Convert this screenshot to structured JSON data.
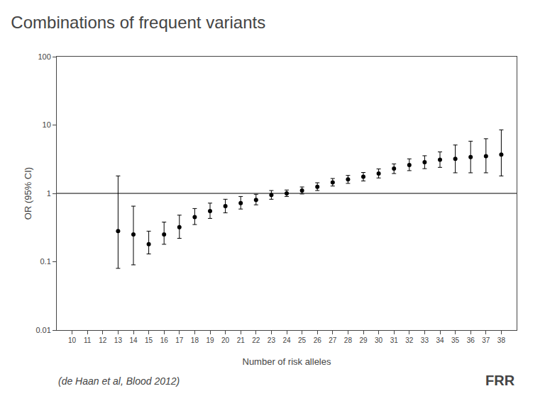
{
  "chart_data": {
    "type": "scatter",
    "title": "Combinations of frequent variants",
    "subtitle": "(de Haan et al, Blood 2012)",
    "annotations": [
      "FRR"
    ],
    "xlabel": "Number of risk alleles",
    "ylabel": "OR (95% CI)",
    "x": [
      10,
      11,
      12,
      13,
      14,
      15,
      16,
      17,
      18,
      19,
      20,
      21,
      22,
      23,
      24,
      25,
      26,
      27,
      28,
      29,
      30,
      31,
      32,
      33,
      34,
      35,
      36,
      37,
      38
    ],
    "values": [
      null,
      null,
      null,
      0.28,
      0.25,
      0.18,
      0.25,
      0.32,
      0.45,
      0.55,
      0.65,
      0.72,
      0.8,
      0.95,
      1.0,
      1.1,
      1.25,
      1.45,
      1.6,
      1.75,
      1.95,
      2.3,
      2.6,
      2.85,
      3.1,
      3.2,
      3.4,
      3.5,
      3.7
    ],
    "ci_low": [
      null,
      null,
      null,
      0.08,
      0.09,
      0.13,
      0.18,
      0.22,
      0.35,
      0.43,
      0.52,
      0.59,
      0.68,
      0.82,
      0.9,
      0.98,
      1.1,
      1.28,
      1.4,
      1.52,
      1.68,
      1.95,
      2.15,
      2.3,
      2.4,
      2.0,
      2.0,
      2.0,
      1.8
    ],
    "ci_high": [
      null,
      null,
      null,
      1.8,
      0.65,
      0.28,
      0.38,
      0.48,
      0.6,
      0.72,
      0.82,
      0.9,
      0.97,
      1.1,
      1.12,
      1.24,
      1.43,
      1.65,
      1.83,
      2.02,
      2.28,
      2.7,
      3.2,
      3.55,
      4.05,
      5.1,
      5.8,
      6.3,
      8.5
    ],
    "color": "#000000",
    "marker": "circle",
    "reference_line": 1.0,
    "xlim": [
      9,
      39
    ],
    "xticks": [
      10,
      11,
      12,
      13,
      14,
      15,
      16,
      17,
      18,
      19,
      20,
      21,
      22,
      23,
      24,
      25,
      26,
      27,
      28,
      29,
      30,
      31,
      32,
      33,
      34,
      35,
      36,
      37,
      38
    ],
    "ylim": [
      0.01,
      100
    ],
    "yticks": [
      0.01,
      0.1,
      1,
      10,
      100
    ],
    "log": "y",
    "grid": false
  }
}
